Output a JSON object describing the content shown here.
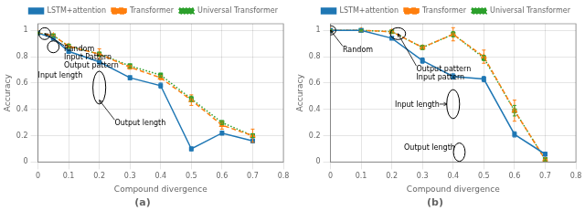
{
  "chart_data": [
    {
      "type": "line",
      "title": "(a)",
      "x": [
        0.0,
        0.05,
        0.1,
        0.2,
        0.3,
        0.4,
        0.5,
        0.6,
        0.7
      ],
      "series": [
        {
          "name": "LSTM+attention",
          "color": "#1f77b4",
          "marker": "square",
          "line_style": "solid",
          "values": [
            0.98,
            0.94,
            0.84,
            0.76,
            0.64,
            0.58,
            0.1,
            0.22,
            0.16
          ],
          "errors": [
            0.005,
            0.01,
            0.015,
            0.015,
            0.015,
            0.02,
            0.015,
            0.015,
            0.015
          ]
        },
        {
          "name": "Transformer",
          "color": "#ff7f0e",
          "marker": "triangle",
          "line_style": "dashed",
          "values": [
            0.98,
            0.96,
            0.88,
            0.82,
            0.72,
            0.64,
            0.47,
            0.28,
            0.2
          ],
          "errors": [
            0.005,
            0.01,
            0.015,
            0.04,
            0.015,
            0.015,
            0.04,
            0.03,
            0.05
          ]
        },
        {
          "name": "Universal Transformer",
          "color": "#2ca02c",
          "marker": "square",
          "line_style": "dotted",
          "values": [
            0.98,
            0.96,
            0.88,
            0.82,
            0.73,
            0.66,
            0.48,
            0.3,
            0.2
          ],
          "errors": [
            0.005,
            0.01,
            0.015,
            0.015,
            0.015,
            0.015,
            0.02,
            0.015,
            0.015
          ]
        }
      ],
      "xlabel": "Compound divergence",
      "ylabel": "Accuracy",
      "xlim": [
        0.0,
        0.8
      ],
      "ylim": [
        0.0,
        1.05
      ],
      "xticks": [
        0.0,
        0.1,
        0.2,
        0.3,
        0.4,
        0.5,
        0.6,
        0.7,
        0.8
      ],
      "yticks": [
        0.0,
        0.2,
        0.4,
        0.6,
        0.8,
        1.0
      ],
      "grid": true,
      "legend": "upper right",
      "annotations": [
        {
          "text": "Random\nInput Pattern\nOutput pattern",
          "x": 0.085,
          "y": 0.885,
          "arrow_to": [
            0.022,
            0.975
          ],
          "ellipse": {
            "cx": 0.022,
            "cy": 0.975,
            "w": 0.038,
            "h": 0.09
          }
        },
        {
          "text": "Input length",
          "x": 0.0,
          "y": 0.78,
          "ellipse": {
            "cx": 0.05,
            "cy": 0.875,
            "w": 0.038,
            "h": 0.09
          }
        },
        {
          "text": "Output length",
          "x": 0.25,
          "y": 0.32,
          "arrow_to": [
            0.2,
            0.47
          ],
          "ellipse": {
            "cx": 0.2,
            "cy": 0.565,
            "w": 0.042,
            "h": 0.25
          }
        }
      ]
    },
    {
      "type": "line",
      "title": "(b)",
      "x": [
        0.0,
        0.1,
        0.2,
        0.3,
        0.4,
        0.5,
        0.6,
        0.7
      ],
      "series": [
        {
          "name": "LSTM+attention",
          "color": "#1f77b4",
          "marker": "square",
          "line_style": "solid",
          "values": [
            1.0,
            1.0,
            0.94,
            0.77,
            0.65,
            0.63,
            0.21,
            0.06
          ],
          "errors": [
            0.005,
            0.005,
            0.01,
            0.02,
            0.02,
            0.02,
            0.02,
            0.015
          ]
        },
        {
          "name": "Transformer",
          "color": "#ff7f0e",
          "marker": "triangle",
          "line_style": "dashed",
          "values": [
            1.0,
            1.0,
            0.99,
            0.87,
            0.97,
            0.8,
            0.39,
            0.02
          ],
          "errors": [
            0.005,
            0.005,
            0.01,
            0.015,
            0.05,
            0.05,
            0.08,
            0.01
          ]
        },
        {
          "name": "Universal Transformer",
          "color": "#2ca02c",
          "marker": "square",
          "line_style": "dotted",
          "values": [
            1.0,
            1.0,
            0.99,
            0.87,
            0.97,
            0.79,
            0.39,
            0.02
          ],
          "errors": [
            0.005,
            0.005,
            0.01,
            0.015,
            0.02,
            0.02,
            0.04,
            0.01
          ]
        }
      ],
      "xlabel": "Compound divergence",
      "ylabel": "Accuracy",
      "xlim": [
        0.0,
        0.8
      ],
      "ylim": [
        0.0,
        1.05
      ],
      "xticks": [
        0.0,
        0.1,
        0.2,
        0.3,
        0.4,
        0.5,
        0.6,
        0.7,
        0.8
      ],
      "yticks": [
        0.0,
        0.2,
        0.4,
        0.6,
        0.8,
        1.0
      ],
      "grid": true,
      "legend": "upper right",
      "annotations": [
        {
          "text": "Random",
          "x": 0.04,
          "y": 0.88,
          "arrow_to": [
            0.0,
            1.0
          ],
          "ellipse": {
            "cx": 0.0,
            "cy": 1.0,
            "w": 0.035,
            "h": 0.07
          }
        },
        {
          "text": "Output pattern\nInput pattern",
          "x": 0.28,
          "y": 0.73,
          "arrow_to": [
            0.22,
            0.975
          ],
          "ellipse": {
            "cx": 0.22,
            "cy": 0.975,
            "w": 0.05,
            "h": 0.09
          }
        },
        {
          "text": "Input length",
          "x": 0.21,
          "y": 0.46,
          "arrow_to": [
            0.38,
            0.44
          ],
          "ellipse": {
            "cx": 0.4,
            "cy": 0.44,
            "w": 0.042,
            "h": 0.22
          }
        },
        {
          "text": "Output length",
          "x": 0.24,
          "y": 0.135,
          "arrow_to": [
            0.4,
            0.075
          ],
          "ellipse": {
            "cx": 0.42,
            "cy": 0.075,
            "w": 0.038,
            "h": 0.14
          }
        }
      ]
    }
  ]
}
